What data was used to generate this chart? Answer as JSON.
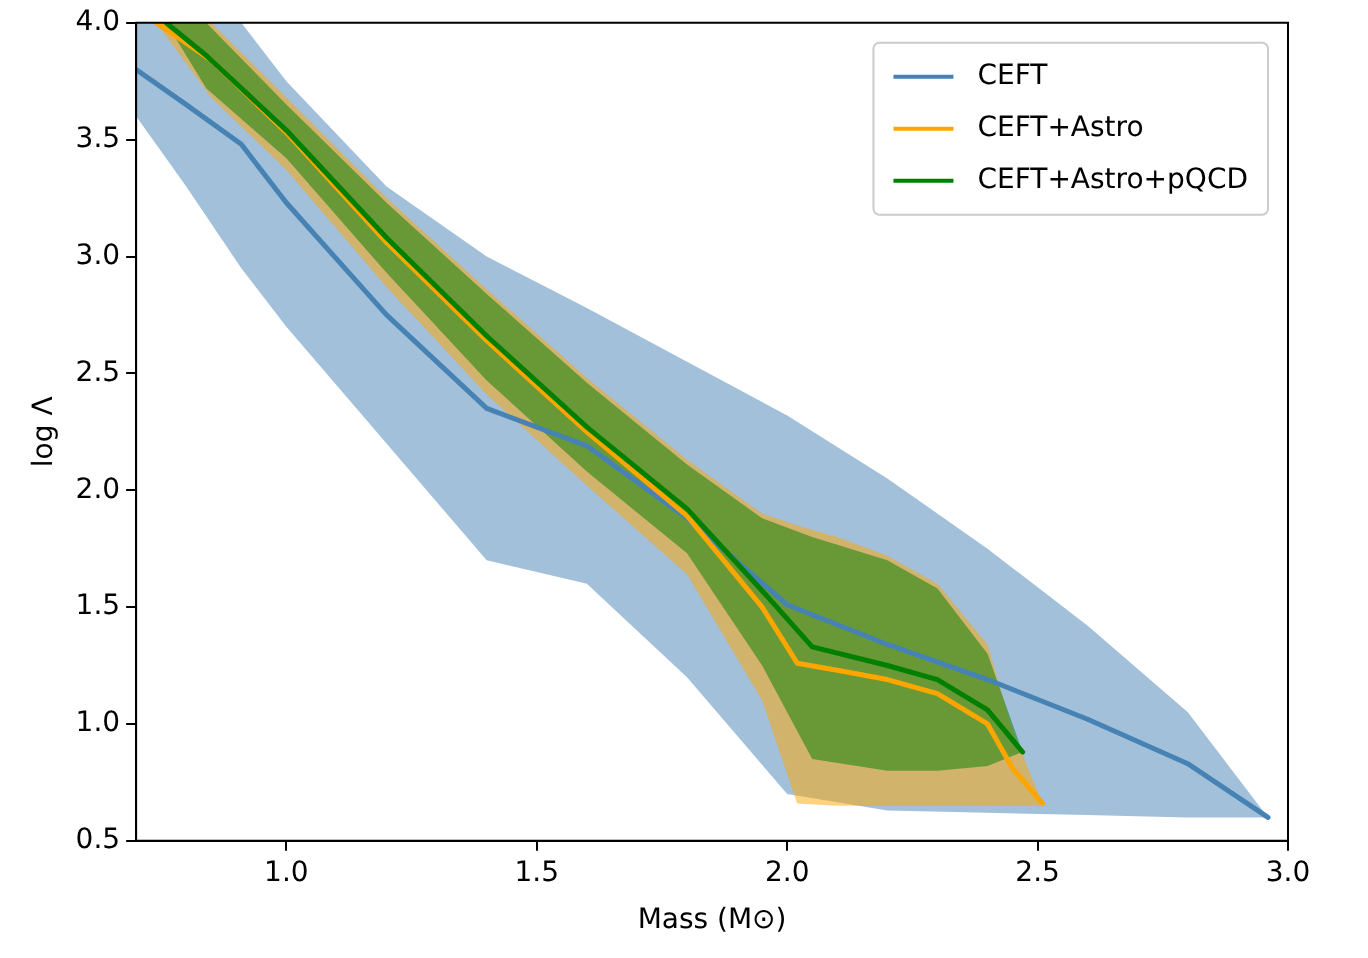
{
  "chart_data": {
    "type": "line",
    "xlabel": "Mass (M⊙)",
    "ylabel": "log Λ",
    "xlim": [
      0.7,
      3.0
    ],
    "ylim": [
      0.5,
      4.0
    ],
    "xticks": [
      {
        "value": 1,
        "label": "1.0"
      },
      1.5,
      {
        "value": 2,
        "label": "2.0"
      },
      2.5,
      {
        "value": 3,
        "label": "3.0"
      }
    ],
    "yticks": [
      0.5,
      {
        "value": 1,
        "label": "1.0"
      },
      1.5,
      {
        "value": 2,
        "label": "2.0"
      },
      2.5,
      {
        "value": 3,
        "label": "3.0"
      },
      3.5,
      {
        "value": 4,
        "label": "4.0"
      }
    ],
    "grid": false,
    "legend": "top right",
    "marker": "none",
    "line_style": "solid",
    "series": [
      {
        "name": "CEFT",
        "color": "#4682b4",
        "x": [
          0.7,
          0.8,
          0.91,
          1.0,
          1.2,
          1.4,
          1.6,
          1.8,
          2.0,
          2.2,
          2.4,
          2.6,
          2.8,
          2.96
        ],
        "values": [
          3.8,
          3.65,
          3.48,
          3.23,
          2.75,
          2.35,
          2.19,
          1.88,
          1.51,
          1.34,
          1.19,
          1.02,
          0.83,
          0.6
        ],
        "upper": [
          4.0,
          4.0,
          4.0,
          3.75,
          3.3,
          3.0,
          2.78,
          2.55,
          2.32,
          2.05,
          1.75,
          1.42,
          1.05,
          0.6
        ],
        "lower": [
          3.6,
          3.3,
          2.95,
          2.7,
          2.2,
          1.7,
          1.6,
          1.2,
          0.7,
          0.63,
          0.62,
          0.61,
          0.6,
          0.6
        ]
      },
      {
        "name": "CEFT+Astro",
        "color": "#ffa500",
        "x": [
          0.74,
          0.85,
          1.0,
          1.2,
          1.4,
          1.6,
          1.8,
          1.95,
          2.02,
          2.1,
          2.2,
          2.3,
          2.4,
          2.45,
          2.51
        ],
        "values": [
          4.0,
          3.84,
          3.53,
          3.06,
          2.64,
          2.25,
          1.89,
          1.5,
          1.26,
          1.23,
          1.19,
          1.13,
          1.0,
          0.81,
          0.66
        ],
        "upper": [
          4.0,
          4.0,
          3.68,
          3.25,
          2.86,
          2.48,
          2.13,
          1.9,
          1.85,
          1.8,
          1.72,
          1.6,
          1.34,
          0.97,
          0.66
        ],
        "lower": [
          4.0,
          3.68,
          3.37,
          2.87,
          2.41,
          2.02,
          1.64,
          1.1,
          0.66,
          0.65,
          0.65,
          0.65,
          0.65,
          0.65,
          0.65
        ]
      },
      {
        "name": "CEFT+Astro+pQCD",
        "color": "#008000",
        "x": [
          0.76,
          0.84,
          1.0,
          1.2,
          1.4,
          1.6,
          1.8,
          1.95,
          2.05,
          2.2,
          2.3,
          2.4,
          2.47
        ],
        "values": [
          4.0,
          3.86,
          3.54,
          3.08,
          2.66,
          2.27,
          1.92,
          1.57,
          1.33,
          1.25,
          1.19,
          1.06,
          0.88
        ],
        "upper": [
          4.0,
          4.0,
          3.65,
          3.23,
          2.84,
          2.46,
          2.11,
          1.88,
          1.8,
          1.7,
          1.58,
          1.3,
          0.88
        ],
        "lower": [
          4.0,
          3.72,
          3.42,
          2.93,
          2.47,
          2.08,
          1.73,
          1.25,
          0.85,
          0.8,
          0.8,
          0.82,
          0.88
        ]
      }
    ]
  }
}
